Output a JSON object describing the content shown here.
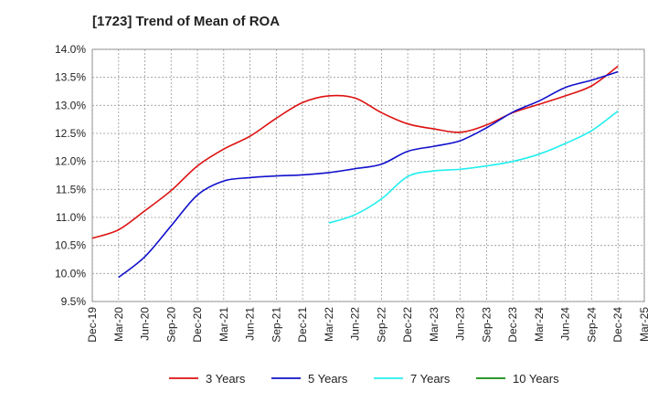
{
  "chart_data": {
    "type": "line",
    "title": "[1723]  Trend of Mean of ROA",
    "xlabel": "",
    "ylabel": "",
    "ylim": [
      9.5,
      14.0
    ],
    "yticks": [
      "9.5%",
      "10.0%",
      "10.5%",
      "11.0%",
      "11.5%",
      "12.0%",
      "12.5%",
      "13.0%",
      "13.5%",
      "14.0%"
    ],
    "categories": [
      "Dec-19",
      "Mar-20",
      "Jun-20",
      "Sep-20",
      "Dec-20",
      "Mar-21",
      "Jun-21",
      "Sep-21",
      "Dec-21",
      "Mar-22",
      "Jun-22",
      "Sep-22",
      "Dec-22",
      "Mar-23",
      "Jun-23",
      "Sep-23",
      "Dec-23",
      "Mar-24",
      "Jun-24",
      "Sep-24",
      "Dec-24",
      "Mar-25"
    ],
    "grid": true,
    "legend_position": "bottom",
    "series": [
      {
        "name": "3 Years",
        "color": "#dd1111",
        "values": [
          10.63,
          10.78,
          11.12,
          11.48,
          11.92,
          12.22,
          12.45,
          12.77,
          13.05,
          13.17,
          13.13,
          12.87,
          12.67,
          12.58,
          12.52,
          12.65,
          12.87,
          13.02,
          13.17,
          13.35,
          13.7,
          null
        ]
      },
      {
        "name": "5 Years",
        "color": "#1111cc",
        "values": [
          null,
          9.93,
          10.3,
          10.85,
          11.4,
          11.65,
          11.71,
          11.74,
          11.76,
          11.8,
          11.87,
          11.95,
          12.18,
          12.27,
          12.37,
          12.6,
          12.88,
          13.08,
          13.32,
          13.45,
          13.6,
          null
        ]
      },
      {
        "name": "7 Years",
        "color": "#22eeee",
        "values": [
          null,
          null,
          null,
          null,
          null,
          null,
          null,
          null,
          null,
          10.9,
          11.05,
          11.33,
          11.73,
          11.83,
          11.86,
          11.92,
          12.0,
          12.13,
          12.32,
          12.55,
          12.9,
          null
        ]
      },
      {
        "name": "10 Years",
        "color": "#118811",
        "values": [
          null,
          null,
          null,
          null,
          null,
          null,
          null,
          null,
          null,
          null,
          null,
          null,
          null,
          null,
          null,
          null,
          null,
          null,
          null,
          null,
          null,
          null
        ]
      }
    ]
  }
}
